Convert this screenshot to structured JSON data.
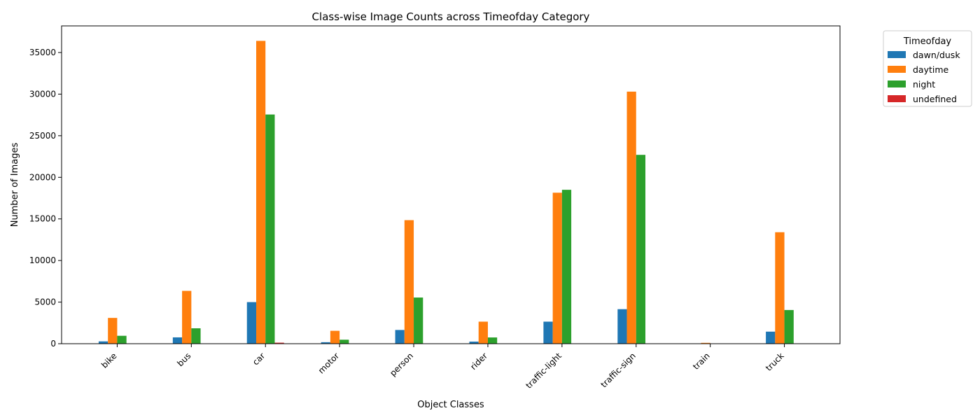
{
  "chart_data": {
    "type": "bar",
    "title": "Class-wise Image Counts across Timeofday Category",
    "xlabel": "Object Classes",
    "ylabel": "Number of Images",
    "categories": [
      "bike",
      "bus",
      "car",
      "motor",
      "person",
      "rider",
      "traffic-light",
      "traffic-sign",
      "train",
      "truck"
    ],
    "ylim": [
      0,
      38200
    ],
    "yticks": [
      0,
      5000,
      10000,
      15000,
      20000,
      25000,
      30000,
      35000
    ],
    "grid": false,
    "legend": {
      "title": "Timeofday",
      "placement": "outside-top-right"
    },
    "series": [
      {
        "name": "dawn/dusk",
        "color": "#1f77b4",
        "values": [
          280,
          760,
          5000,
          180,
          1650,
          250,
          2650,
          4150,
          5,
          1450
        ]
      },
      {
        "name": "daytime",
        "color": "#ff7f0e",
        "values": [
          3100,
          6350,
          36400,
          1550,
          14850,
          2650,
          18150,
          30300,
          100,
          13400
        ]
      },
      {
        "name": "night",
        "color": "#2ca02c",
        "values": [
          950,
          1850,
          27550,
          480,
          5550,
          750,
          18500,
          22700,
          10,
          4050
        ]
      },
      {
        "name": "undefined",
        "color": "#d62728",
        "values": [
          5,
          10,
          120,
          5,
          20,
          5,
          30,
          30,
          0,
          15
        ]
      }
    ]
  }
}
